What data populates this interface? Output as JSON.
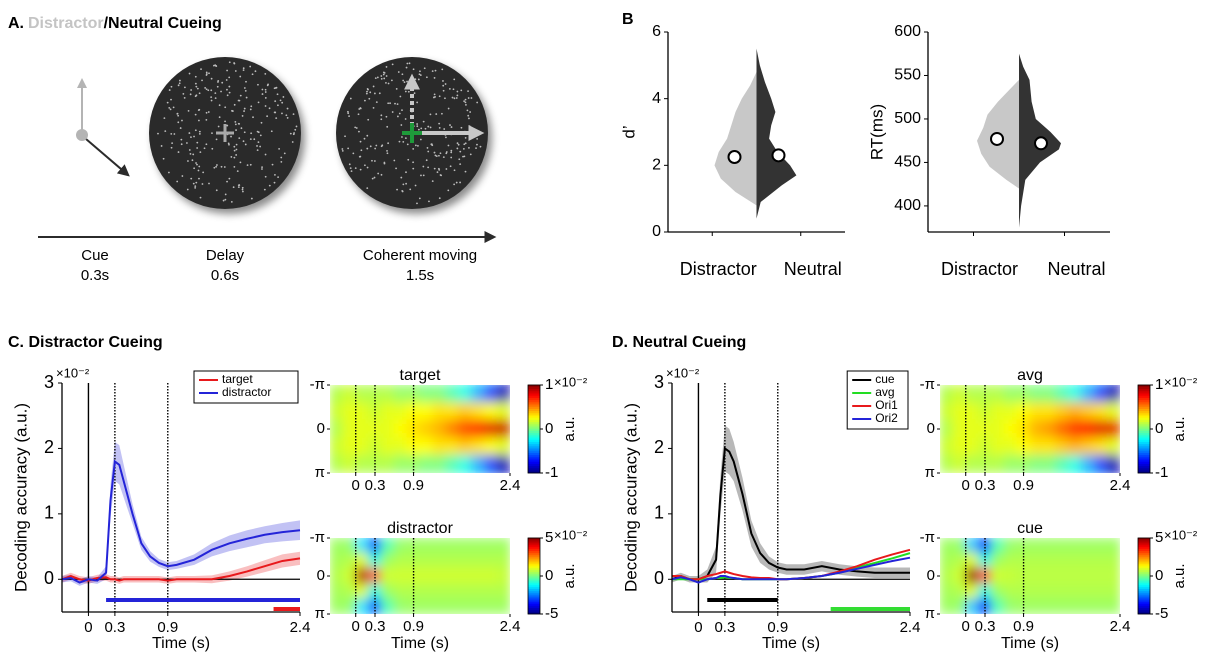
{
  "panels": {
    "a": {
      "label": "A.",
      "title_highlight": "Distractor",
      "title_rest": "/Neutral Cueing",
      "phases": [
        {
          "name": "Cue",
          "duration": "0.3s"
        },
        {
          "name": "Delay",
          "duration": "0.6s"
        },
        {
          "name": "Coherent moving",
          "duration": "1.5s"
        }
      ]
    },
    "b": "B",
    "c": "C. Distractor Cueing",
    "d": "D. Neutral  Cueing"
  },
  "chart_data": [
    {
      "type": "violin",
      "ylabel": "d’",
      "ylim": [
        0,
        6
      ],
      "yticks": [
        0,
        2,
        4,
        6
      ],
      "categories": [
        "Distractor",
        "Neutral"
      ],
      "violins": [
        {
          "color": "#c8c8c8",
          "mean": 2.25,
          "y": [
            0.8,
            1.2,
            1.6,
            2.0,
            2.4,
            2.8,
            3.2,
            3.6,
            4.0,
            4.4,
            4.8
          ],
          "width": [
            0,
            0.5,
            0.85,
            1.0,
            0.9,
            0.7,
            0.6,
            0.5,
            0.35,
            0.15,
            0
          ]
        },
        {
          "color": "#333333",
          "mean": 2.3,
          "y": [
            0.4,
            0.9,
            1.4,
            1.7,
            2.0,
            2.4,
            2.8,
            3.2,
            3.6,
            4.0,
            4.5,
            5.0,
            5.5
          ],
          "width": [
            0,
            0.1,
            0.6,
            0.95,
            0.8,
            0.5,
            0.3,
            0.35,
            0.45,
            0.35,
            0.2,
            0.08,
            0
          ]
        }
      ]
    },
    {
      "type": "violin",
      "ylabel": "RT(ms)",
      "ylim": [
        370,
        600
      ],
      "yticks": [
        400,
        450,
        500,
        550,
        600
      ],
      "categories": [
        "Distractor",
        "Neutral"
      ],
      "violins": [
        {
          "color": "#c8c8c8",
          "mean": 477,
          "y": [
            420,
            430,
            445,
            460,
            475,
            490,
            505,
            520,
            535,
            545
          ],
          "width": [
            0,
            0.3,
            0.7,
            0.9,
            1.0,
            0.85,
            0.75,
            0.5,
            0.2,
            0
          ]
        },
        {
          "color": "#333333",
          "mean": 472,
          "y": [
            375,
            400,
            430,
            450,
            465,
            472,
            485,
            500,
            520,
            545,
            560,
            575
          ],
          "width": [
            0,
            0.05,
            0.15,
            0.5,
            0.95,
            1.0,
            0.75,
            0.4,
            0.3,
            0.25,
            0.1,
            0
          ]
        }
      ]
    },
    {
      "type": "line",
      "xlabel": "Time (s)",
      "ylabel": "Decoding accuracy (a.u.)",
      "y_multiplier": "×10⁻²",
      "xlim": [
        -0.3,
        2.4
      ],
      "xticks": [
        0,
        0.3,
        0.9,
        2.4
      ],
      "ylim": [
        -0.5,
        3
      ],
      "yticks": [
        0,
        1,
        2,
        3
      ],
      "legend": "upper right",
      "vlines": [
        {
          "x": 0,
          "style": "solid"
        },
        {
          "x": 0.3,
          "style": "dotted"
        },
        {
          "x": 0.9,
          "style": "dotted"
        }
      ],
      "x": [
        -0.3,
        -0.2,
        -0.1,
        0,
        0.1,
        0.2,
        0.25,
        0.3,
        0.35,
        0.4,
        0.5,
        0.6,
        0.7,
        0.8,
        0.9,
        1.0,
        1.2,
        1.4,
        1.6,
        1.8,
        2.0,
        2.2,
        2.4
      ],
      "series": [
        {
          "name": "target",
          "color": "#e8191c",
          "values": [
            0,
            0.05,
            0,
            -0.02,
            0.02,
            0.03,
            0,
            0,
            -0.02,
            0,
            0,
            0,
            0,
            0,
            -0.02,
            0,
            0,
            0,
            0.05,
            0.12,
            0.2,
            0.28,
            0.32
          ],
          "errors": [
            0.05,
            0.05,
            0.05,
            0.05,
            0.05,
            0.05,
            0.05,
            0.05,
            0.05,
            0.05,
            0.05,
            0.05,
            0.05,
            0.05,
            0.05,
            0.05,
            0.05,
            0.06,
            0.07,
            0.08,
            0.09,
            0.1,
            0.1
          ]
        },
        {
          "name": "distractor",
          "color": "#2424d8",
          "values": [
            0,
            0.02,
            -0.05,
            0,
            -0.02,
            0.1,
            1.2,
            1.8,
            1.75,
            1.5,
            1.0,
            0.55,
            0.35,
            0.25,
            0.2,
            0.22,
            0.3,
            0.45,
            0.55,
            0.62,
            0.68,
            0.72,
            0.75
          ],
          "errors": [
            0.05,
            0.05,
            0.05,
            0.05,
            0.05,
            0.1,
            0.25,
            0.3,
            0.3,
            0.25,
            0.15,
            0.1,
            0.08,
            0.06,
            0.06,
            0.06,
            0.08,
            0.1,
            0.12,
            0.13,
            0.13,
            0.14,
            0.15
          ]
        }
      ],
      "sig_bars": [
        {
          "color": "#2424d8",
          "x": [
            0.2,
            2.4
          ]
        },
        {
          "color": "#e8191c",
          "x": [
            2.1,
            2.4
          ]
        }
      ]
    },
    {
      "type": "heatmap",
      "title": "target",
      "colormap": "jet",
      "xlim": [
        -0.4,
        2.4
      ],
      "xticks": [
        0,
        0.3,
        0.9,
        2.4
      ],
      "ylim": [
        -3.14159,
        3.14159
      ],
      "yticks": [
        {
          "value": -3.14159,
          "label": "-π"
        },
        0,
        {
          "value": 3.14159,
          "label": "π"
        }
      ],
      "clim": [
        -1,
        1
      ],
      "cticks": [
        1,
        0,
        -1
      ],
      "c_multiplier": "×10⁻²",
      "colorbar_label": "a.u.",
      "vlines": [
        0,
        0.3,
        0.9
      ],
      "z": [
        [
          0.1,
          0.15,
          0.1,
          0.1,
          0.1,
          0.05,
          0.05,
          0,
          0,
          -0.1,
          -0.2,
          -0.4,
          -0.6,
          -0.9
        ],
        [
          0.15,
          0.2,
          0.2,
          0.15,
          0.2,
          0.2,
          0.25,
          0.25,
          0.3,
          0.3,
          0.35,
          0.3,
          0.25,
          0.2
        ],
        [
          0.1,
          0.2,
          0.2,
          0.2,
          0.2,
          0.25,
          0.3,
          0.35,
          0.4,
          0.5,
          0.6,
          0.7,
          0.8,
          0.85
        ],
        [
          0.15,
          0.2,
          0.2,
          0.15,
          0.2,
          0.2,
          0.25,
          0.25,
          0.3,
          0.3,
          0.35,
          0.3,
          0.25,
          0.2
        ],
        [
          0.1,
          0.15,
          0.1,
          0.1,
          0.1,
          0.05,
          0.05,
          0,
          0,
          -0.1,
          -0.2,
          -0.4,
          -0.6,
          -0.9
        ]
      ]
    },
    {
      "type": "heatmap",
      "title": "distractor",
      "colormap": "jet",
      "xlim": [
        -0.4,
        2.4
      ],
      "xticks": [
        0,
        0.3,
        0.9,
        2.4
      ],
      "ylim": [
        -3.14159,
        3.14159
      ],
      "yticks": [
        {
          "value": -3.14159,
          "label": "-π"
        },
        0,
        {
          "value": 3.14159,
          "label": "π"
        }
      ],
      "clim": [
        -5,
        5
      ],
      "cticks": [
        5,
        0,
        -5
      ],
      "c_multiplier": "×10⁻²",
      "colorbar_label": "a.u.",
      "vlines": [
        0,
        0.3,
        0.9
      ],
      "z": [
        [
          0.3,
          0.2,
          -1.5,
          -3,
          -0.5,
          0.2,
          0.3,
          0.3,
          0.3,
          0.3,
          0.3,
          0.3,
          0.3,
          0.3
        ],
        [
          0.4,
          0.5,
          1,
          -1,
          0.3,
          0.5,
          0.5,
          0.5,
          0.5,
          0.5,
          0.5,
          0.5,
          0.5,
          0.5
        ],
        [
          0.5,
          0.8,
          4.5,
          3,
          0.8,
          0.8,
          0.8,
          0.8,
          0.8,
          0.8,
          0.8,
          0.8,
          0.8,
          0.7
        ],
        [
          0.4,
          0.5,
          1,
          -1,
          0.3,
          0.5,
          0.5,
          0.5,
          0.5,
          0.5,
          0.5,
          0.5,
          0.5,
          0.5
        ],
        [
          0.3,
          0.2,
          -1.5,
          -3,
          -0.5,
          0.2,
          0.3,
          0.3,
          0.3,
          0.3,
          0.3,
          0.3,
          0.3,
          0.3
        ]
      ]
    },
    {
      "type": "line",
      "xlabel": "Time (s)",
      "ylabel": "Decoding accuracy (a.u.)",
      "y_multiplier": "×10⁻²",
      "xlim": [
        -0.3,
        2.4
      ],
      "xticks": [
        0,
        0.3,
        0.9,
        2.4
      ],
      "ylim": [
        -0.5,
        3
      ],
      "yticks": [
        0,
        1,
        2,
        3
      ],
      "legend": "upper right",
      "vlines": [
        {
          "x": 0,
          "style": "solid"
        },
        {
          "x": 0.3,
          "style": "dotted"
        },
        {
          "x": 0.9,
          "style": "dotted"
        }
      ],
      "x": [
        -0.3,
        -0.2,
        -0.1,
        0,
        0.1,
        0.2,
        0.25,
        0.3,
        0.35,
        0.4,
        0.5,
        0.6,
        0.7,
        0.8,
        0.9,
        1.0,
        1.2,
        1.4,
        1.6,
        1.8,
        2.0,
        2.2,
        2.4
      ],
      "series": [
        {
          "name": "cue",
          "color": "#000000",
          "values": [
            0,
            0.05,
            0,
            0,
            0.05,
            0.3,
            1.3,
            2.0,
            1.95,
            1.8,
            1.3,
            0.7,
            0.4,
            0.25,
            0.18,
            0.15,
            0.15,
            0.2,
            0.15,
            0.12,
            0.1,
            0.1,
            0.1
          ],
          "errors": [
            0.05,
            0.05,
            0.05,
            0.05,
            0.1,
            0.2,
            0.3,
            0.35,
            0.35,
            0.3,
            0.25,
            0.2,
            0.15,
            0.1,
            0.08,
            0.08,
            0.08,
            0.08,
            0.08,
            0.08,
            0.08,
            0.08,
            0.08
          ]
        },
        {
          "name": "avg",
          "color": "#22dd22",
          "values": [
            0,
            0,
            0,
            0,
            0,
            0.02,
            0.02,
            0.03,
            0.02,
            0.02,
            0,
            0,
            0,
            0,
            0,
            0,
            0.02,
            0.05,
            0.1,
            0.18,
            0.25,
            0.32,
            0.4
          ]
        },
        {
          "name": "Ori1",
          "color": "#e8191c",
          "values": [
            0.05,
            0.05,
            0,
            0,
            0.05,
            0.08,
            0.1,
            0.12,
            0.1,
            0.08,
            0.05,
            0.03,
            0.02,
            0.02,
            0,
            0,
            0.02,
            0.05,
            0.12,
            0.2,
            0.3,
            0.38,
            0.45
          ]
        },
        {
          "name": "Ori2",
          "color": "#2424d8",
          "values": [
            0,
            0.03,
            0,
            -0.05,
            0,
            0.02,
            0.05,
            0.05,
            0.03,
            0.02,
            0,
            0,
            0,
            0,
            0,
            0,
            0.02,
            0.05,
            0.1,
            0.16,
            0.22,
            0.28,
            0.33
          ]
        }
      ],
      "sig_bars": [
        {
          "color": "#000000",
          "x": [
            0.1,
            0.9
          ]
        },
        {
          "color": "#33dd33",
          "x": [
            1.5,
            2.4
          ]
        }
      ]
    },
    {
      "type": "heatmap",
      "title": "avg",
      "colormap": "jet",
      "xlim": [
        -0.4,
        2.4
      ],
      "xticks": [
        0,
        0.3,
        0.9,
        2.4
      ],
      "ylim": [
        -3.14159,
        3.14159
      ],
      "yticks": [
        {
          "value": -3.14159,
          "label": "-π"
        },
        0,
        {
          "value": 3.14159,
          "label": "π"
        }
      ],
      "clim": [
        -1,
        1
      ],
      "cticks": [
        1,
        0,
        -1
      ],
      "c_multiplier": "×10⁻²",
      "colorbar_label": "a.u.",
      "vlines": [
        0,
        0.3,
        0.9
      ],
      "z": [
        [
          0.1,
          0.15,
          0.1,
          0.1,
          0.1,
          0.05,
          0.05,
          0,
          0,
          -0.1,
          -0.2,
          -0.4,
          -0.6,
          -0.9
        ],
        [
          0.15,
          0.2,
          0.2,
          0.15,
          0.2,
          0.2,
          0.25,
          0.3,
          0.3,
          0.35,
          0.4,
          0.35,
          0.3,
          0.2
        ],
        [
          0.1,
          0.2,
          0.2,
          0.2,
          0.2,
          0.25,
          0.3,
          0.4,
          0.45,
          0.55,
          0.65,
          0.75,
          0.8,
          0.8
        ],
        [
          0.15,
          0.2,
          0.2,
          0.15,
          0.2,
          0.2,
          0.25,
          0.3,
          0.3,
          0.35,
          0.4,
          0.35,
          0.3,
          0.2
        ],
        [
          0.1,
          0.15,
          0.1,
          0.1,
          0.1,
          0.05,
          0.05,
          0,
          0,
          -0.1,
          -0.2,
          -0.4,
          -0.6,
          -0.9
        ]
      ]
    },
    {
      "type": "heatmap",
      "title": "cue",
      "colormap": "jet",
      "xlim": [
        -0.4,
        2.4
      ],
      "xticks": [
        0,
        0.3,
        0.9,
        2.4
      ],
      "ylim": [
        -3.14159,
        3.14159
      ],
      "yticks": [
        {
          "value": -3.14159,
          "label": "-π"
        },
        0,
        {
          "value": 3.14159,
          "label": "π"
        }
      ],
      "clim": [
        -5,
        5
      ],
      "cticks": [
        5,
        0,
        -5
      ],
      "c_multiplier": "×10⁻²",
      "colorbar_label": "a.u.",
      "vlines": [
        0,
        0.3,
        0.9
      ],
      "z": [
        [
          0.3,
          0.2,
          -1.8,
          -3.5,
          -0.5,
          0.2,
          0.3,
          0.3,
          0.3,
          0.3,
          0.3,
          0.3,
          0.3,
          0.3
        ],
        [
          0.4,
          0.5,
          1,
          -1,
          0.3,
          0.5,
          0.5,
          0.5,
          0.5,
          0.5,
          0.5,
          0.5,
          0.5,
          0.5
        ],
        [
          0.5,
          0.8,
          4.8,
          3.2,
          0.8,
          0.7,
          0.6,
          0.6,
          0.6,
          0.6,
          0.6,
          0.6,
          0.6,
          0.6
        ],
        [
          0.4,
          0.5,
          1,
          -1,
          0.3,
          0.5,
          0.5,
          0.5,
          0.5,
          0.5,
          0.5,
          0.5,
          0.5,
          0.5
        ],
        [
          0.3,
          0.2,
          -1.8,
          -3.5,
          -0.5,
          0.2,
          0.3,
          0.3,
          0.3,
          0.3,
          0.3,
          0.3,
          0.3,
          0.3
        ]
      ]
    }
  ]
}
